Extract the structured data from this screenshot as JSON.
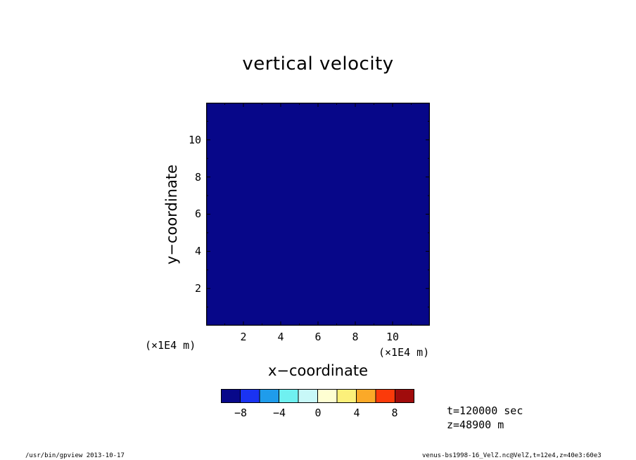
{
  "chart_data": {
    "type": "heatmap",
    "title": "vertical velocity",
    "xlabel": "x−coordinate",
    "ylabel": "y−coordinate",
    "x_unit": "(×1E4 m)",
    "y_unit": "(×1E4 m)",
    "xlim": [
      0,
      12
    ],
    "ylim": [
      0,
      12
    ],
    "x_ticks": [
      "2",
      "4",
      "6",
      "8",
      "10"
    ],
    "y_ticks": [
      "2",
      "4",
      "6",
      "8",
      "10"
    ],
    "colorbar": {
      "levels": [
        -10,
        -8,
        -6,
        -4,
        -2,
        0,
        2,
        4,
        6,
        8,
        10
      ],
      "colors": [
        "#08088a",
        "#1a33f2",
        "#1f9ceb",
        "#6ff0f0",
        "#c8f8f8",
        "#fefed2",
        "#fcf07a",
        "#fba928",
        "#fb3a0a",
        "#a00c0c"
      ],
      "tick_labels": [
        "−8",
        "−4",
        "0",
        "4",
        "8"
      ],
      "tick_values": [
        -8,
        -4,
        0,
        4,
        8
      ]
    }
  },
  "annotations": {
    "time": "t=120000 sec",
    "height": "z=48900  m"
  },
  "footer": {
    "left": "/usr/bin/gpview   2013-10-17",
    "right": "venus-bs1998-16_VelZ.nc@VelZ,t=12e4,z=40e3:60e3"
  }
}
